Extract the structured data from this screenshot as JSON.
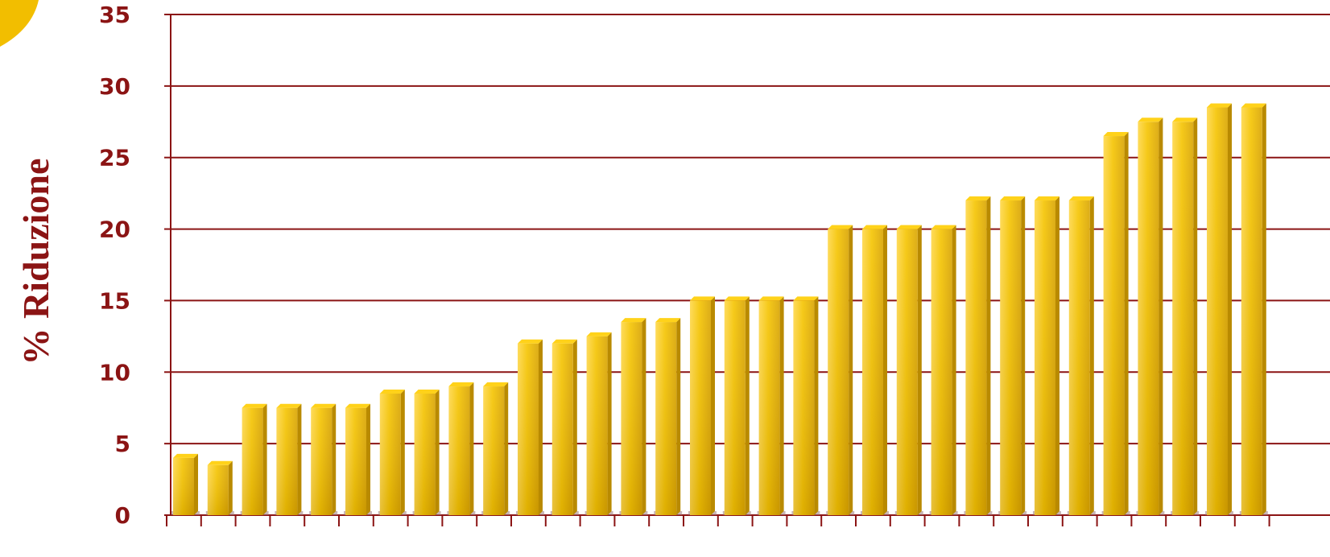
{
  "colors": {
    "axis": "#8b1414",
    "bar_front": "#f2be00",
    "bar_highlight": "#ffe24a",
    "bar_side": "#b98a00",
    "bar_top": "#ffd21a",
    "corner_accent": "#f2be00"
  },
  "chart_data": {
    "type": "bar",
    "title": "",
    "xlabel": "",
    "ylabel": "% Riduzione",
    "ylim": [
      0,
      35
    ],
    "yticks": [
      0,
      5,
      10,
      15,
      20,
      25,
      30,
      35
    ],
    "grid": true,
    "legend": "none",
    "style": "3d-columns",
    "values": [
      4,
      3.5,
      7.5,
      7.5,
      7.5,
      7.5,
      8.5,
      8.5,
      9,
      9,
      12,
      12,
      12.5,
      13.5,
      13.5,
      15,
      15,
      15,
      15,
      20,
      20,
      20,
      20,
      22,
      22,
      22,
      22,
      26.5,
      27.5,
      27.5,
      28.5,
      28.5
    ]
  }
}
